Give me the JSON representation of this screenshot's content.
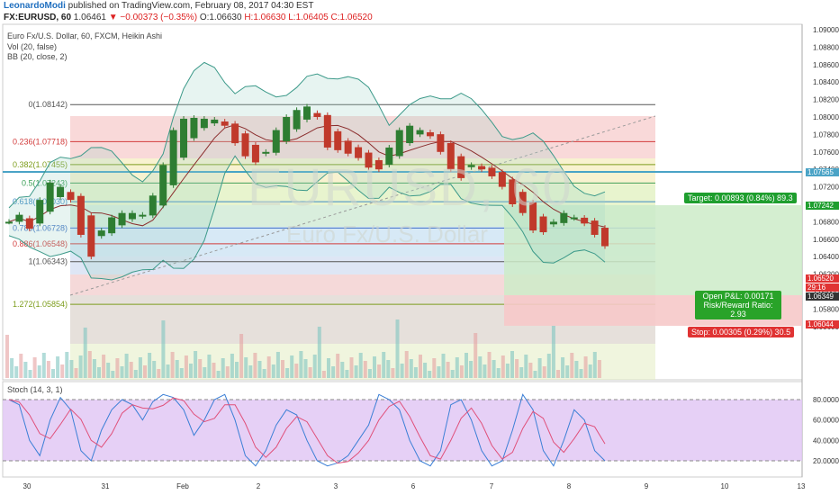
{
  "header": {
    "author": "LeonardoModi",
    "published": " published on TradingView.com, February 08, 2017 04:30 EST",
    "symbol": "FX:EURUSD, 60",
    "last": "1.06461",
    "change": "▼ −0.00373 (−0.35%)",
    "ohlc_o": "O:1.06630",
    "ohlc_h": "H:1.06630",
    "ohlc_l": "L:1.06405",
    "ohlc_c": "C:1.06520"
  },
  "legend": {
    "title": "Euro Fx/U.S. Dollar, 60, FXCM, Heikin Ashi",
    "vol": "Vol (20, false)",
    "bb": "BB (20, close, 2)",
    "stoch": "Stoch (14, 3, 1)"
  },
  "watermark": {
    "big": "EURUSD, 60",
    "small": "Euro Fx/U.S. Dollar"
  },
  "fib_levels": [
    {
      "label": "0(1.08142)",
      "value": 1.08142,
      "color": "#555555"
    },
    {
      "label": "0.236(1.07718)",
      "value": 1.07718,
      "color": "#d23b3b"
    },
    {
      "label": "0.382(1.07455)",
      "value": 1.07455,
      "color": "#7d9d1c"
    },
    {
      "label": "0.5(1.07243)",
      "value": 1.07243,
      "color": "#3aa057"
    },
    {
      "label": "0.618(1.07030)",
      "value": 1.0703,
      "color": "#3d8bc4"
    },
    {
      "label": "0.786(1.06728)",
      "value": 1.06728,
      "color": "#3d6fc4"
    },
    {
      "label": "0.886(1.06548)",
      "value": 1.06548,
      "color": "#d23b3b"
    },
    {
      "label": "1(1.06343)",
      "value": 1.06343,
      "color": "#555555"
    },
    {
      "label": "1.272(1.05854)",
      "value": 1.05854,
      "color": "#7d9d1c"
    }
  ],
  "position": {
    "target": "Target: 0.00893 (0.84%) 89.3",
    "open_pl": "Open P&L: 0.00171",
    "rr": "Risk/Reward Ratio: 2.93",
    "stop": "Stop: 0.00305 (0.29%) 30.5"
  },
  "price_tags": {
    "h_line": "1.07565",
    "target": "1.07242",
    "last": "1.06520",
    "countdown": "29:16",
    "entry": "1.06349",
    "stop": "1.06044"
  },
  "colors": {
    "up": "#2e7d32",
    "down": "#c0392b",
    "bb": "#3d9a8a",
    "ma": "#8b2e2e",
    "target_zone": "#cdebc8",
    "stop_zone": "#f6c9c9",
    "stoch_band": "#e2c8f5",
    "k_line": "#3b7fd6",
    "d_line": "#e0507a"
  },
  "chart_data": {
    "type": "line",
    "price_axis": {
      "ticks": [
        "1.09000",
        "1.08800",
        "1.08600",
        "1.08400",
        "1.08200",
        "1.08000",
        "1.07800",
        "1.07600",
        "1.07400",
        "1.07200",
        "1.07000",
        "1.06800",
        "1.06600",
        "1.06400",
        "1.06200",
        "1.06000",
        "1.05800",
        "1.05600"
      ]
    },
    "stoch_axis": {
      "ticks": [
        "80.0000",
        "60.0000",
        "40.0000",
        "20.0000"
      ],
      "levels": [
        80,
        20
      ]
    },
    "x_ticks": [
      "30",
      "31",
      "Feb",
      "2",
      "3",
      "6",
      "7",
      "8",
      "9",
      "10",
      "13"
    ],
    "series": [
      {
        "name": "Heikin Ashi close",
        "values": [
          1.068,
          1.0688,
          1.0672,
          1.0705,
          1.0725,
          1.072,
          1.0705,
          1.0665,
          1.064,
          1.067,
          1.0685,
          1.069,
          1.069,
          1.0688,
          1.071,
          1.0745,
          1.0785,
          1.0798,
          1.0799,
          1.0798,
          1.0797,
          1.079,
          1.077,
          1.0755,
          1.0748,
          1.076,
          1.0785,
          1.08,
          1.0808,
          1.0812,
          1.08,
          1.0765,
          1.0762,
          1.0758,
          1.0753,
          1.0742,
          1.074,
          1.0765,
          1.0785,
          1.079,
          1.0785,
          1.0778,
          1.076,
          1.074,
          1.073,
          1.0745,
          1.074,
          1.0732,
          1.072,
          1.07,
          1.069,
          1.067,
          1.0668,
          1.068,
          1.069,
          1.0685,
          1.0678,
          1.0665,
          1.0652
        ]
      },
      {
        "name": "",
        "values": [
          80,
          75,
          40,
          25,
          60,
          82,
          70,
          30,
          20,
          50,
          70,
          80,
          75,
          60,
          78,
          85,
          82,
          70,
          45,
          60,
          80,
          85,
          60,
          25,
          15,
          30,
          55,
          70,
          65,
          40,
          20,
          15,
          18,
          25,
          40,
          55,
          85,
          80,
          70,
          40,
          20,
          15,
          30,
          75,
          80,
          60,
          30,
          15,
          20,
          50,
          85,
          70,
          30,
          15,
          40,
          70,
          60,
          30,
          20
        ]
      }
    ]
  }
}
